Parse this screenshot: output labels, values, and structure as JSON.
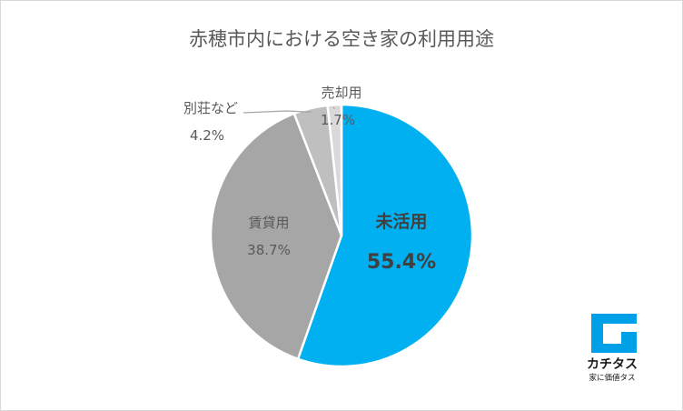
{
  "chart_data": {
    "type": "pie",
    "title": "赤穂市内における空き家の利用用途",
    "slices": [
      {
        "name": "未活用",
        "value": 55.4,
        "label": "55.4%",
        "color": "#00b0f0"
      },
      {
        "name": "賃貸用",
        "value": 38.7,
        "label": "38.7%",
        "color": "#a6a6a6"
      },
      {
        "name": "別荘など",
        "value": 4.2,
        "label": "4.2%",
        "color": "#bfbfbf"
      },
      {
        "name": "売却用",
        "value": 1.7,
        "label": "1.7%",
        "color": "#d9d9d9"
      }
    ],
    "start_angle_deg": 0,
    "direction": "clockwise"
  },
  "logo": {
    "name": "カチタス",
    "tagline": "家に価値タス",
    "color": "#00a0e9"
  }
}
